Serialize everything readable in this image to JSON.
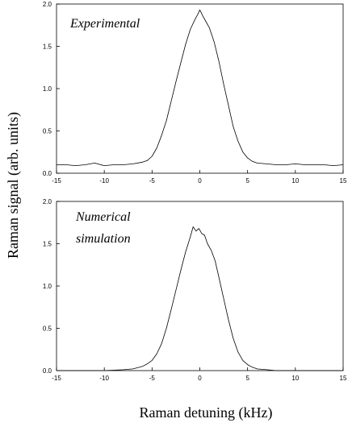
{
  "chart_data": [
    {
      "type": "line",
      "annotation": "Experimental",
      "xlim": [
        -15,
        15
      ],
      "ylim": [
        0,
        2.0
      ],
      "xticks": [
        "-15",
        "-10",
        "-5",
        "0",
        "5",
        "10",
        "15"
      ],
      "xtick_values": [
        -15,
        -10,
        -5,
        0,
        5,
        10,
        15
      ],
      "yticks": [
        "0.0",
        "0.5",
        "1.0",
        "1.5",
        "2.0"
      ],
      "ytick_values": [
        0,
        0.5,
        1.0,
        1.5,
        2.0
      ],
      "grid": false,
      "series": [
        {
          "x": [
            -15,
            -14,
            -13,
            -12,
            -11,
            -10,
            -9,
            -8,
            -7,
            -6,
            -5.5,
            -5,
            -4.5,
            -4,
            -3.5,
            -3,
            -2.5,
            -2,
            -1.5,
            -1,
            -0.5,
            -0.2,
            0,
            0.3,
            0.6,
            1,
            1.5,
            2,
            2.5,
            3,
            3.5,
            4,
            4.5,
            5,
            5.5,
            6,
            7,
            8,
            9,
            10,
            11,
            12,
            13,
            14,
            15
          ],
          "y": [
            0.1,
            0.1,
            0.09,
            0.1,
            0.12,
            0.09,
            0.1,
            0.1,
            0.11,
            0.13,
            0.15,
            0.2,
            0.3,
            0.45,
            0.62,
            0.85,
            1.08,
            1.3,
            1.52,
            1.7,
            1.82,
            1.88,
            1.93,
            1.86,
            1.8,
            1.72,
            1.55,
            1.32,
            1.05,
            0.8,
            0.55,
            0.38,
            0.25,
            0.18,
            0.14,
            0.12,
            0.11,
            0.1,
            0.1,
            0.11,
            0.1,
            0.1,
            0.1,
            0.09,
            0.1
          ]
        }
      ]
    },
    {
      "type": "line",
      "annotation": [
        "Numerical",
        "simulation"
      ],
      "xlim": [
        -15,
        15
      ],
      "ylim": [
        0,
        2.0
      ],
      "xticks": [
        "-15",
        "-10",
        "-5",
        "0",
        "5",
        "10",
        "15"
      ],
      "xtick_values": [
        -15,
        -10,
        -5,
        0,
        5,
        10,
        15
      ],
      "yticks": [
        "0.0",
        "0.5",
        "1.0",
        "1.5",
        "2.0"
      ],
      "ytick_values": [
        0,
        0.5,
        1.0,
        1.5,
        2.0
      ],
      "grid": false,
      "series": [
        {
          "x": [
            -15,
            -12,
            -10,
            -8,
            -7,
            -6,
            -5.5,
            -5,
            -4.5,
            -4,
            -3.5,
            -3,
            -2.5,
            -2,
            -1.5,
            -1,
            -0.7,
            -0.4,
            -0.1,
            0.2,
            0.5,
            0.8,
            1.2,
            1.6,
            2,
            2.5,
            3,
            3.5,
            4,
            4.5,
            5,
            5.5,
            6,
            7,
            8,
            10,
            12,
            15
          ],
          "y": [
            0,
            0,
            0,
            0.01,
            0.02,
            0.05,
            0.08,
            0.12,
            0.2,
            0.32,
            0.5,
            0.72,
            0.95,
            1.18,
            1.4,
            1.58,
            1.7,
            1.65,
            1.68,
            1.62,
            1.6,
            1.5,
            1.42,
            1.3,
            1.1,
            0.85,
            0.6,
            0.38,
            0.22,
            0.12,
            0.07,
            0.04,
            0.02,
            0.01,
            0,
            0,
            0,
            0
          ]
        }
      ]
    }
  ],
  "ylabel": "Raman signal (arb. units)",
  "xlabel": "Raman detuning (kHz)"
}
